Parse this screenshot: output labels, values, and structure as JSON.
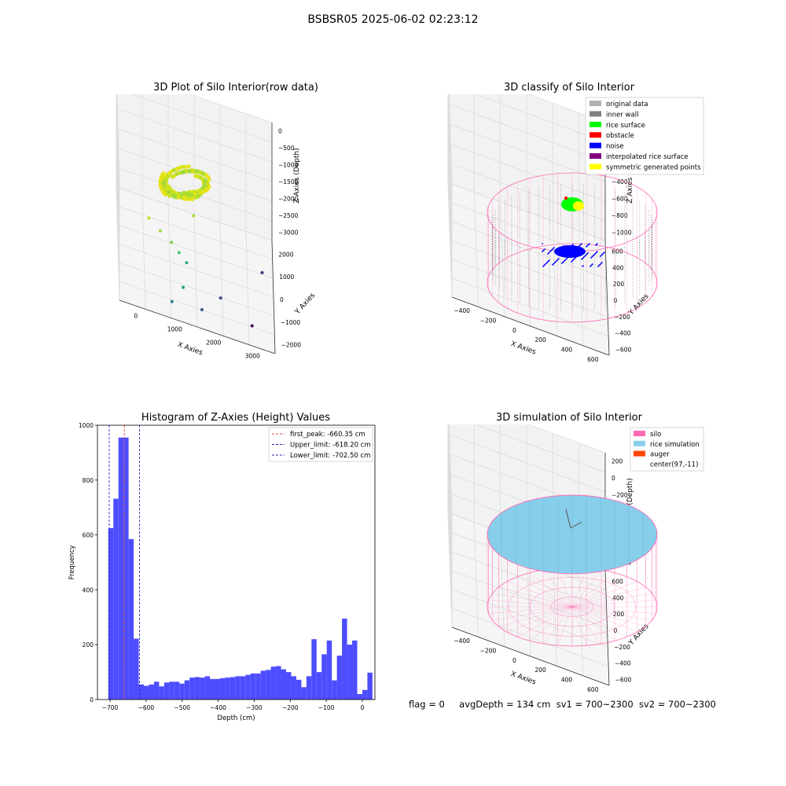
{
  "figure_title": "BSBSR05 2025-06-02 02:23:12",
  "status_line": {
    "flag": "flag = 0",
    "avg_depth": "avgDepth = 134 cm",
    "sv1": "sv1 = 700~2300",
    "sv2": "sv2 = 700~2300"
  },
  "colors": {
    "hist_bar": "#4d4dff",
    "first_peak": "#e34040",
    "limits": "#2a2ab8",
    "silo": "#ff69b4",
    "rice_simulation": "#87ceeb",
    "auger": "#ff4500",
    "inner_wall": "#808080",
    "rice_surface": "#00ff00",
    "obstacle": "#ff0000",
    "noise": "#0000ff",
    "interpolated": "#800080",
    "symmetric": "#ffff00",
    "original": "#b0b0b0"
  },
  "chart_data": [
    {
      "type": "scatter",
      "title": "3D Plot of Silo Interior(row data)",
      "xlabel": "X Axies",
      "ylabel": "Y Axies",
      "zlabel": "Z Axies (Depth)",
      "x_ticks": [
        "0",
        "1000",
        "2000",
        "3000"
      ],
      "y_ticks": [
        "2000",
        "1000",
        "0",
        "−1000",
        "−2000"
      ],
      "z_ticks": [
        "0",
        "−500",
        "−1000",
        "−1500",
        "−2000",
        "−2500",
        "−3000"
      ],
      "xlim": [
        -500,
        3600
      ],
      "ylim": [
        -2200,
        2600
      ],
      "zlim": [
        -3200,
        200
      ],
      "points": [
        {
          "x": 300,
          "y": 200,
          "z": -600,
          "c": "#c7e020"
        },
        {
          "x": 600,
          "y": 300,
          "z": -900,
          "c": "#a0da39"
        },
        {
          "x": 900,
          "y": 500,
          "z": -1200,
          "c": "#7ad151"
        },
        {
          "x": 1100,
          "y": 700,
          "z": -1500,
          "c": "#4ac16d"
        },
        {
          "x": 1300,
          "y": 900,
          "z": -1800,
          "c": "#2db27d"
        },
        {
          "x": 1200,
          "y": -200,
          "z": -2100,
          "c": "#1fa187"
        },
        {
          "x": 900,
          "y": -500,
          "z": -2500,
          "c": "#277f8e"
        },
        {
          "x": 1700,
          "y": 400,
          "z": -2800,
          "c": "#365c8d"
        },
        {
          "x": 2200,
          "y": 1200,
          "z": -2600,
          "c": "#3f4788"
        },
        {
          "x": 3300,
          "y": 1800,
          "z": -1700,
          "c": "#46327e"
        },
        {
          "x": 3000,
          "y": -1500,
          "z": -2000,
          "c": "#440154"
        },
        {
          "x": 1500,
          "y": 2200,
          "z": -900,
          "c": "#a0da39"
        }
      ]
    },
    {
      "type": "scatter",
      "title": "3D classify of Silo Interior",
      "xlabel": "X Axies",
      "ylabel": "Y Axies",
      "zlabel": "Z Axies (Depth)",
      "x_ticks": [
        "−400",
        "−200",
        "0",
        "200",
        "400",
        "600"
      ],
      "y_ticks": [
        "600",
        "400",
        "200",
        "0",
        "−200",
        "−400",
        "−600"
      ],
      "z_ticks": [
        "200",
        "0",
        "−200",
        "−400",
        "−600",
        "−800",
        "−1000"
      ],
      "legend": [
        {
          "label": "original data",
          "color": "#b0b0b0"
        },
        {
          "label": "inner wall",
          "color": "#808080"
        },
        {
          "label": "rice surface",
          "color": "#00ff00"
        },
        {
          "label": "obstacle",
          "color": "#ff0000"
        },
        {
          "label": "noise",
          "color": "#0000ff"
        },
        {
          "label": "interpolated rice surface",
          "color": "#800080"
        },
        {
          "label": "symmetric generated points",
          "color": "#ffff00"
        }
      ],
      "legend_position": "top-right"
    },
    {
      "type": "bar",
      "title": "Histogram of Z-Axies (Height) Values",
      "xlabel": "Depth (cm)",
      "ylabel": "Frequency",
      "xlim": [
        -735,
        35
      ],
      "ylim": [
        0,
        1000
      ],
      "x_ticks": [
        -700,
        -600,
        -500,
        -400,
        -300,
        -200,
        -100,
        0
      ],
      "y_ticks": [
        0,
        200,
        400,
        600,
        800,
        1000
      ],
      "bin_start": -705,
      "bin_width": 14.1,
      "values": [
        625,
        732,
        955,
        955,
        585,
        222,
        55,
        50,
        55,
        65,
        48,
        62,
        65,
        65,
        58,
        70,
        80,
        82,
        80,
        85,
        75,
        75,
        78,
        80,
        82,
        85,
        85,
        90,
        95,
        95,
        105,
        108,
        120,
        122,
        110,
        100,
        85,
        72,
        45,
        85,
        220,
        100,
        165,
        215,
        70,
        160,
        295,
        200,
        215,
        20,
        35,
        98
      ],
      "lines": [
        {
          "label": "first_peak: -660.35 cm",
          "x": -660.35,
          "color": "#e34040"
        },
        {
          "label": "Upper_limit: -618.20 cm",
          "x": -618.2,
          "color": "#2a2ab8"
        },
        {
          "label": "Lower_limit: -702.50 cm",
          "x": -702.5,
          "color": "#2a2ab8"
        }
      ],
      "legend_position": "top-right"
    },
    {
      "type": "surface",
      "title": "3D simulation of Silo Interior",
      "xlabel": "X Axies",
      "ylabel": "Y Axies",
      "zlabel": "Z Axies (Depth)",
      "x_ticks": [
        "−400",
        "−200",
        "0",
        "200",
        "400",
        "600"
      ],
      "y_ticks": [
        "600",
        "400",
        "200",
        "0",
        "−200",
        "−400",
        "−600"
      ],
      "z_ticks": [
        "200",
        "0",
        "−200",
        "−400",
        "−600",
        "−800",
        "−1000"
      ],
      "legend": [
        {
          "label": "silo",
          "color": "#ff69b4"
        },
        {
          "label": "rice simulation",
          "color": "#87ceeb"
        },
        {
          "label": "auger",
          "color": "#ff4500"
        },
        {
          "label": "center(97,-11)",
          "color": ""
        }
      ],
      "legend_position": "top-right"
    }
  ]
}
